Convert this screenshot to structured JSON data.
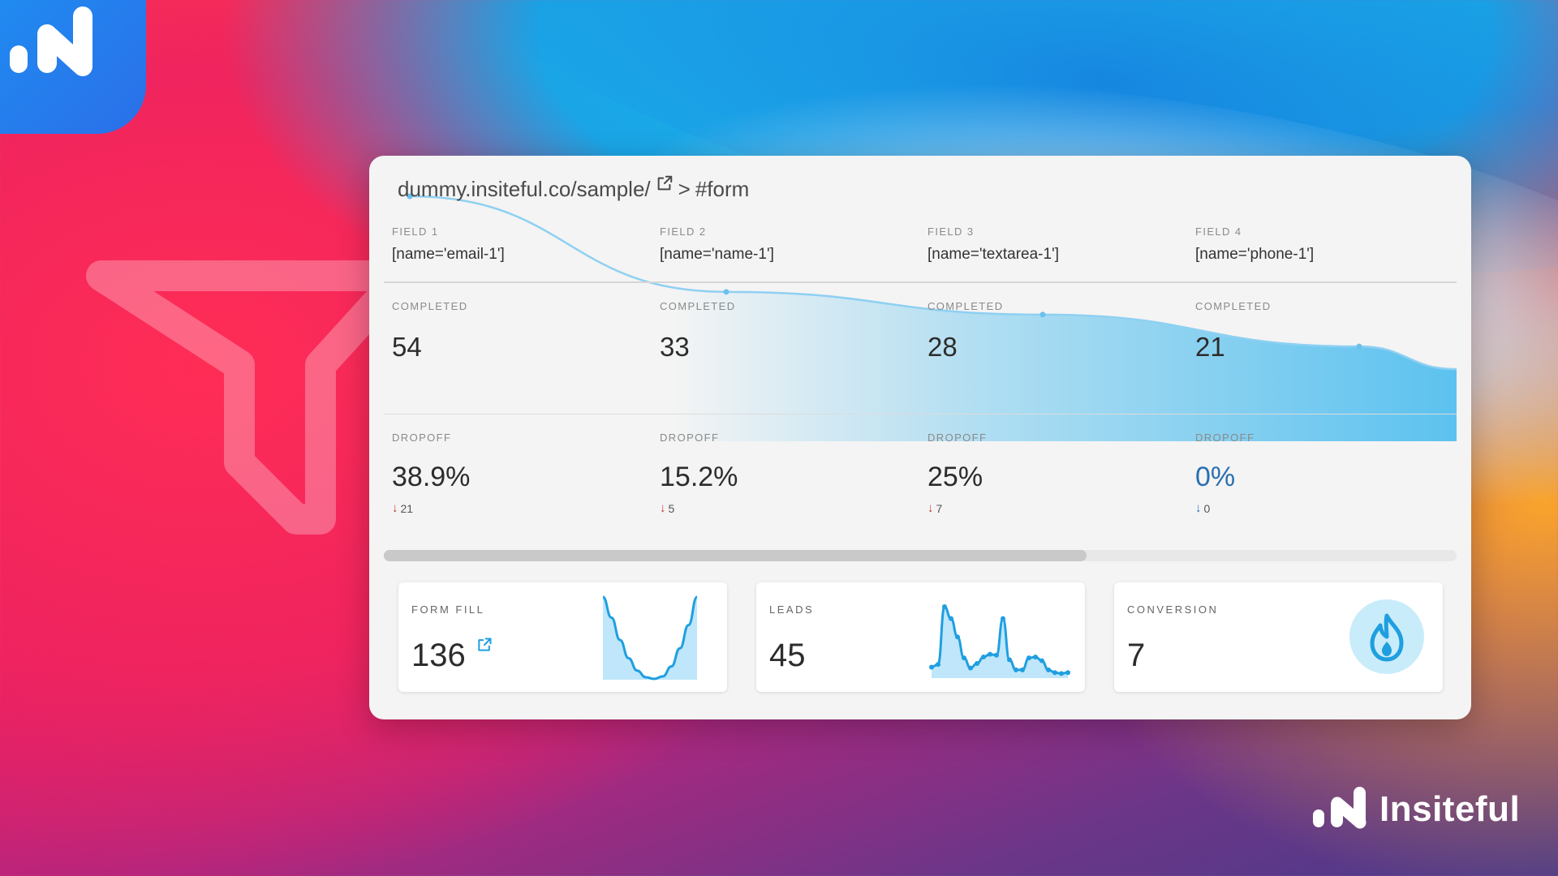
{
  "breadcrumb": {
    "url": "dummy.insiteful.co/sample/",
    "separator": ">",
    "target": "#form"
  },
  "fields": [
    {
      "label": "FIELD 1",
      "selector": "[name='email-1']",
      "completed_label": "COMPLETED",
      "completed": "54",
      "dropoff_label": "DROPOFF",
      "dropoff": "38.9%",
      "dropoff_count": "21"
    },
    {
      "label": "FIELD 2",
      "selector": "[name='name-1']",
      "completed_label": "COMPLETED",
      "completed": "33",
      "dropoff_label": "DROPOFF",
      "dropoff": "15.2%",
      "dropoff_count": "5"
    },
    {
      "label": "FIELD 3",
      "selector": "[name='textarea-1']",
      "completed_label": "COMPLETED",
      "completed": "28",
      "dropoff_label": "DROPOFF",
      "dropoff": "25%",
      "dropoff_count": "7"
    },
    {
      "label": "FIELD 4",
      "selector": "[name='phone-1']",
      "completed_label": "COMPLETED",
      "completed": "21",
      "dropoff_label": "DROPOFF",
      "dropoff": "0%",
      "dropoff_count": "0"
    }
  ],
  "kpis": [
    {
      "label": "FORM FILL",
      "value": "136",
      "icon": "external-link-icon"
    },
    {
      "label": "LEADS",
      "value": "45"
    },
    {
      "label": "CONVERSION",
      "value": "7",
      "icon": "flame-icon"
    }
  ],
  "brand": {
    "name": "Insiteful"
  },
  "colors": {
    "accent": "#1f9fe0",
    "flow_fill": "#5cc2ef",
    "dropoff_arrow": "#c0392b",
    "card_bg": "#f4f4f4"
  },
  "chart_data": [
    {
      "type": "area",
      "categories": [
        "FIELD 1",
        "FIELD 2",
        "FIELD 3",
        "FIELD 4"
      ],
      "series": [
        {
          "values": [
            54,
            33,
            28,
            21
          ]
        }
      ],
      "ylim": [
        0,
        54
      ]
    },
    {
      "type": "area",
      "series": [
        {
          "values": [
            10,
            7.5,
            4.8,
            2.6,
            1.1,
            0.3,
            0.1,
            0.4,
            1.6,
            3.8,
            6.6,
            10
          ]
        }
      ]
    },
    {
      "type": "line",
      "series": [
        {
          "values": [
            1.2,
            1.5,
            7.8,
            6.5,
            4.5,
            2.2,
            1.1,
            1.6,
            2.3,
            2.6,
            2.5,
            6.5,
            2.0,
            0.9,
            0.9,
            2.2,
            2.3,
            1.9,
            0.9,
            0.6,
            0.5,
            0.6
          ]
        }
      ]
    }
  ]
}
